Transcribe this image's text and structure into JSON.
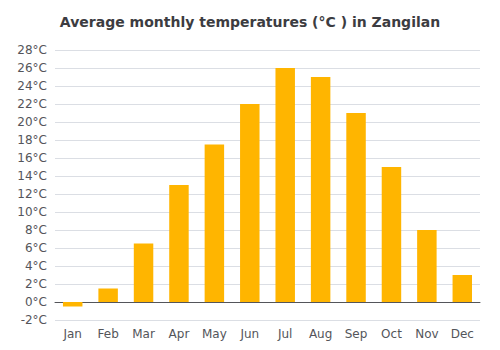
{
  "chart_data": {
    "type": "bar",
    "title": "Average monthly temperatures (°C ) in Zangilan",
    "categories": [
      "Jan",
      "Feb",
      "Mar",
      "Apr",
      "May",
      "Jun",
      "Jul",
      "Aug",
      "Sep",
      "Oct",
      "Nov",
      "Dec"
    ],
    "values": [
      -0.5,
      1.5,
      6.5,
      13.0,
      17.5,
      22.0,
      26.0,
      25.0,
      21.0,
      15.0,
      8.0,
      3.0
    ],
    "color": "#FFB500",
    "ylim": [
      -2,
      28
    ],
    "yticks": [
      {
        "value": -2,
        "label": "-2°C"
      },
      {
        "value": 0,
        "label": "0°C"
      },
      {
        "value": 2,
        "label": "2°C"
      },
      {
        "value": 4,
        "label": "4°C"
      },
      {
        "value": 6,
        "label": "6°C"
      },
      {
        "value": 8,
        "label": "8°C"
      },
      {
        "value": 10,
        "label": "10°C"
      },
      {
        "value": 12,
        "label": "12°C"
      },
      {
        "value": 14,
        "label": "14°C"
      },
      {
        "value": 16,
        "label": "16°C"
      },
      {
        "value": 18,
        "label": "18°C"
      },
      {
        "value": 20,
        "label": "20°C"
      },
      {
        "value": 22,
        "label": "22°C"
      },
      {
        "value": 24,
        "label": "24°C"
      },
      {
        "value": 26,
        "label": "26°C"
      },
      {
        "value": 28,
        "label": "28°C"
      }
    ],
    "grid": true
  }
}
